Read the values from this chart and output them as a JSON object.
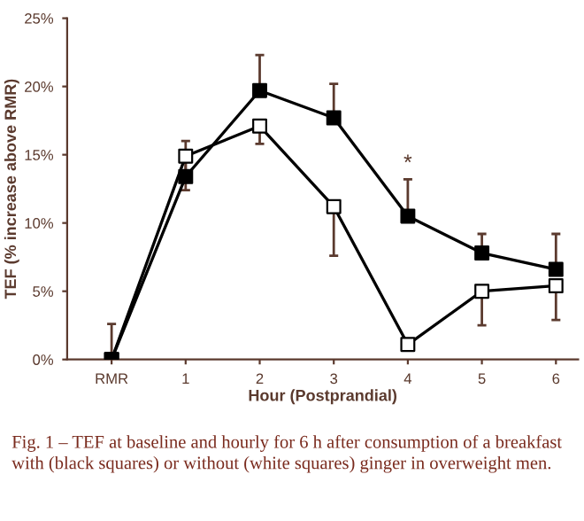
{
  "chart_data": {
    "type": "line",
    "xlabel": "Hour (Postprandial)",
    "ylabel": "TEF (% increase above RMR)",
    "categories": [
      "RMR",
      "1",
      "2",
      "3",
      "4",
      "5",
      "6"
    ],
    "series": [
      {
        "color": "#000000",
        "values": [
          0,
          13.4,
          19.7,
          17.7,
          10.5,
          7.8,
          6.6
        ],
        "errors": [
          [
            0,
            2.6
          ],
          [
            13.4,
            16.0
          ],
          [
            19.7,
            22.3
          ],
          [
            17.7,
            20.2
          ],
          [
            10.5,
            13.2
          ],
          [
            7.8,
            9.2
          ],
          [
            6.6,
            9.2
          ]
        ]
      },
      {
        "color": "#000000",
        "colors": [
          "#000000",
          "#ffffff",
          "#ffffff",
          "#ffffff",
          "#ffffff",
          "#ffffff",
          "#ffffff"
        ],
        "values": [
          0,
          14.9,
          17.1,
          11.2,
          1.1,
          5.0,
          5.4
        ],
        "errors": [
          null,
          [
            12.4,
            14.9
          ],
          [
            15.8,
            17.1
          ],
          [
            7.6,
            11.2
          ],
          null,
          [
            2.5,
            5.0
          ],
          [
            2.9,
            5.4
          ]
        ]
      }
    ],
    "ylim": [
      0,
      25
    ],
    "yticks": [
      {
        "value": 0,
        "label": "0%"
      },
      {
        "value": 5,
        "label": "5%"
      },
      {
        "value": 10,
        "label": "10%"
      },
      {
        "value": 15,
        "label": "15%"
      },
      {
        "value": 20,
        "label": "20%"
      },
      {
        "value": 25,
        "label": "25%"
      }
    ],
    "marker": "square",
    "line_style": "solid",
    "grid": false,
    "annotations": [
      {
        "text": "*",
        "x": "4",
        "y": 13.2
      },
      "Fig. 1 – TEF at baseline and hourly for 6 h after consumption of a breakfast with (black squares) or without (white squares) ginger in overweight men."
    ]
  }
}
